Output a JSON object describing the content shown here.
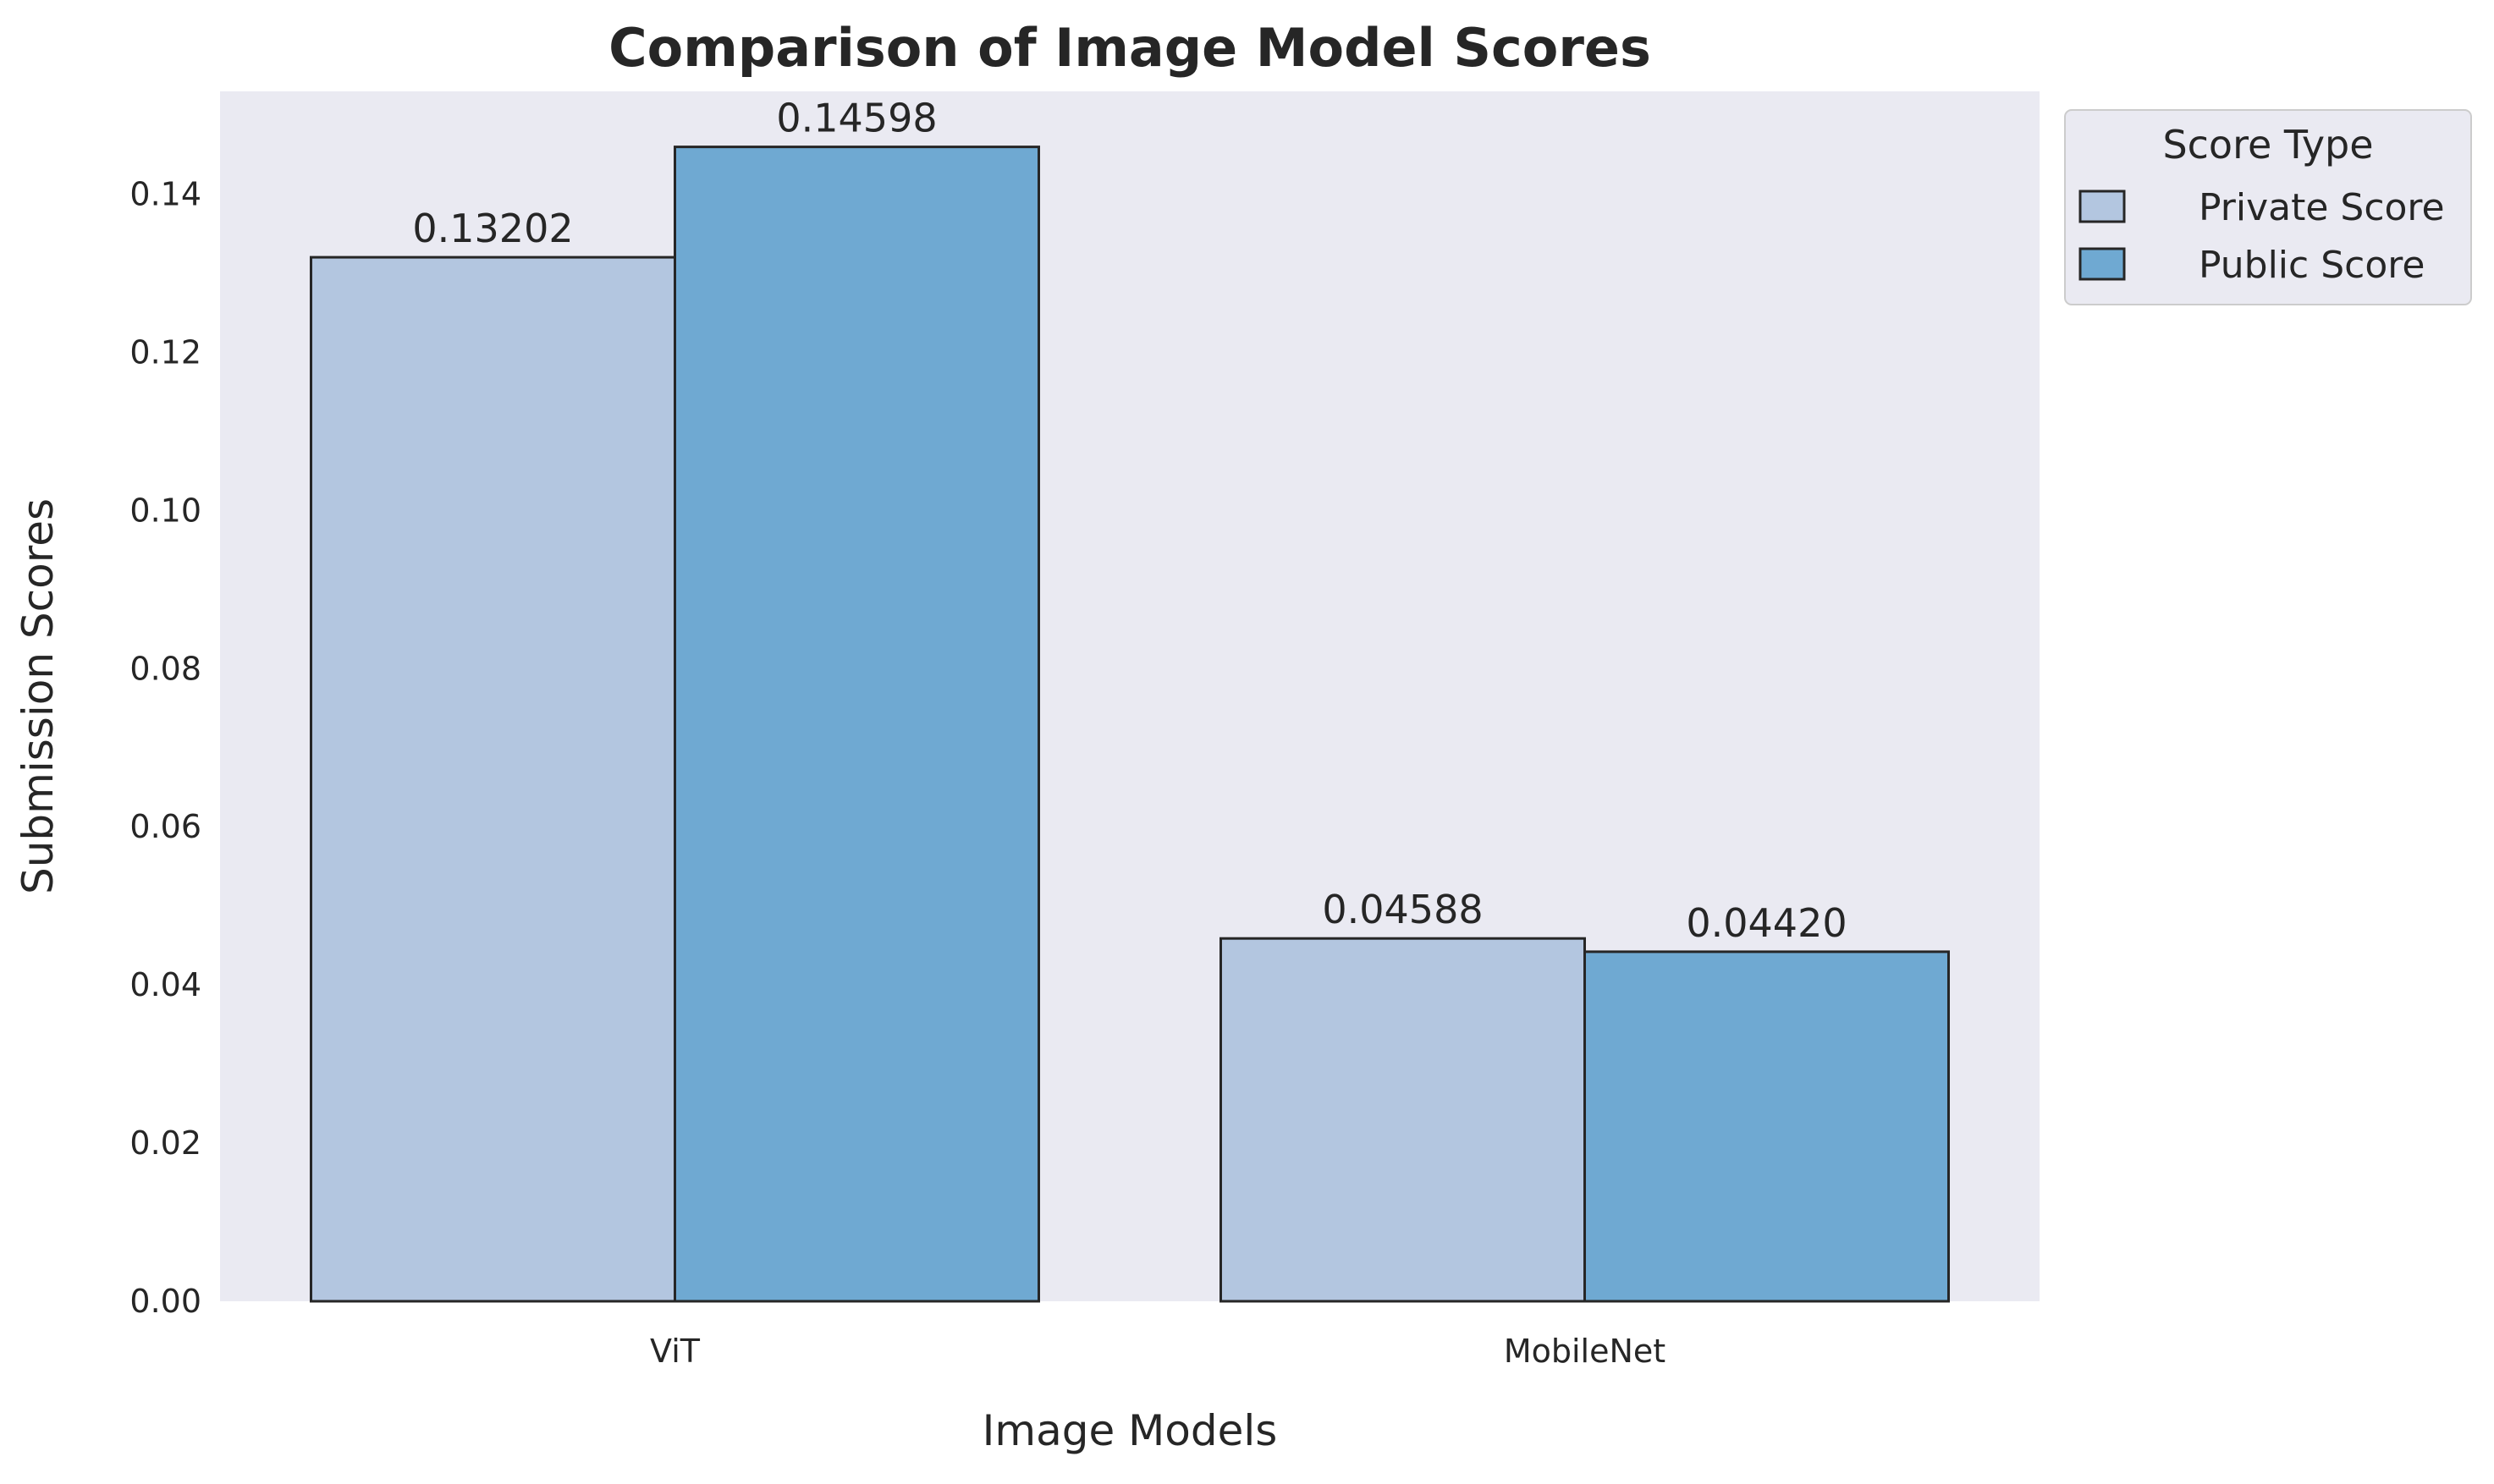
{
  "chart_data": {
    "type": "bar",
    "title": "Comparison of Image Model Scores",
    "xlabel": "Image Models",
    "ylabel": "Submission Scores",
    "categories": [
      "ViT",
      "MobileNet"
    ],
    "series": [
      {
        "name": "Private Score",
        "values": [
          0.13202,
          0.04588
        ],
        "labels": [
          "0.13202",
          "0.04588"
        ],
        "color": "#b3c6e0"
      },
      {
        "name": "Public Score",
        "values": [
          0.14598,
          0.0442
        ],
        "labels": [
          "0.14598",
          "0.04420"
        ],
        "color": "#6fa9d2"
      }
    ],
    "ylim": [
      0,
      0.153
    ],
    "yticks": [
      0.0,
      0.02,
      0.04,
      0.06,
      0.08,
      0.1,
      0.12,
      0.14
    ],
    "ytick_labels": [
      "0.00",
      "0.02",
      "0.04",
      "0.06",
      "0.08",
      "0.10",
      "0.12",
      "0.14"
    ],
    "grid": false,
    "plot_background": "#eaeaf2",
    "bar_edge_color": "#262626",
    "legend": {
      "title": "Score Type",
      "placement": "outside-top-right"
    }
  }
}
